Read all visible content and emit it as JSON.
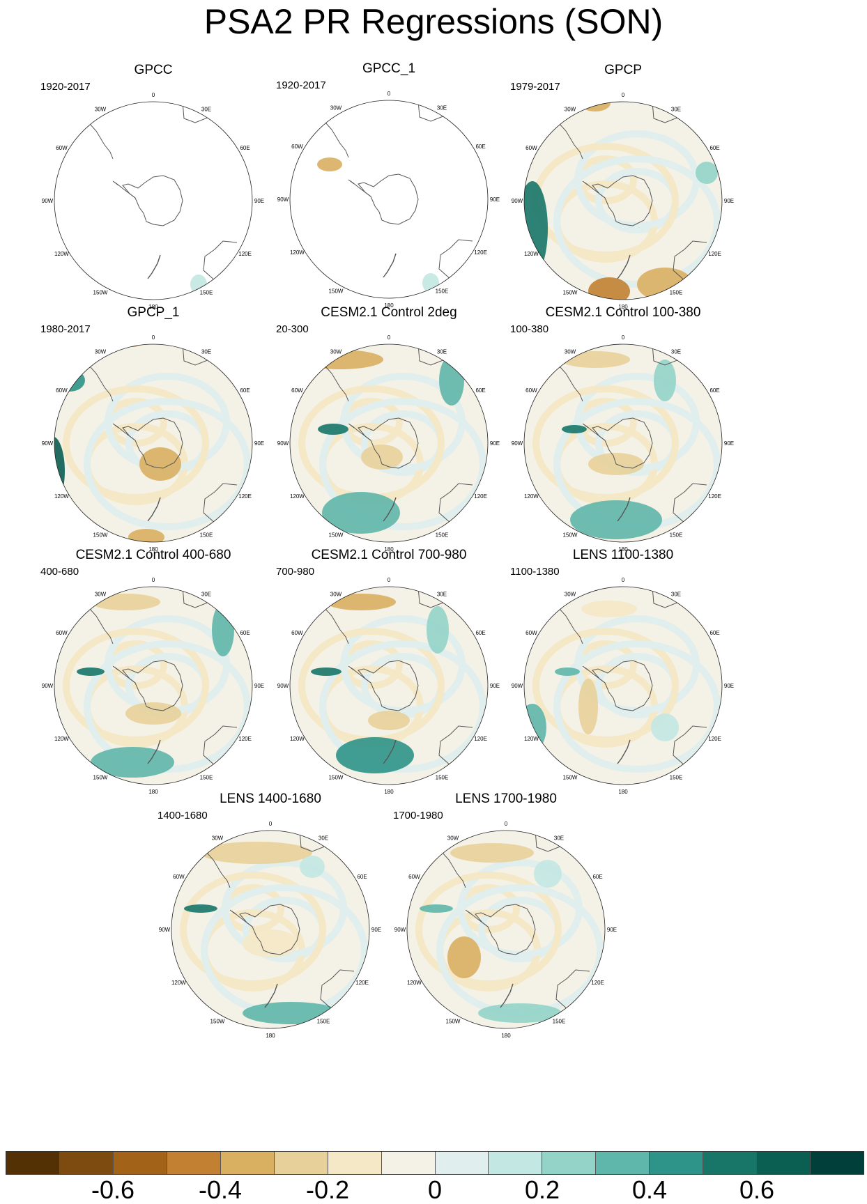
{
  "title": "PSA2 PR Regressions (SON)",
  "grid_labels": [
    "0",
    "30E",
    "60E",
    "90E",
    "120E",
    "150E",
    "180",
    "150W",
    "120W",
    "90W",
    "60W",
    "30W"
  ],
  "colorbar": {
    "colors": [
      "#543005",
      "#7d4a0f",
      "#a26218",
      "#c28132",
      "#d9af62",
      "#e8d09a",
      "#f5e8c6",
      "#f4f1e7",
      "#e0eeed",
      "#c3e7e2",
      "#93d3c8",
      "#5fb6aa",
      "#2e9388",
      "#177668",
      "#0b5e52",
      "#01403a"
    ],
    "tick_labels": [
      "-0.6",
      "-0.4",
      "-0.2",
      "0",
      "0.2",
      "0.4",
      "0.6"
    ],
    "tick_values": [
      -0.6,
      -0.4,
      -0.2,
      0,
      0.2,
      0.4,
      0.6
    ],
    "range": [
      -0.8,
      0.8
    ]
  },
  "panels": [
    {
      "title": "GPCC",
      "period": "1920-2017"
    },
    {
      "title": "GPCC_1",
      "period": "1920-2017"
    },
    {
      "title": "GPCP",
      "period": "1979-2017"
    },
    {
      "title": "GPCP_1",
      "period": "1980-2017"
    },
    {
      "title": "CESM2.1 Control 2deg",
      "period": "20-300"
    },
    {
      "title": "CESM2.1 Control 100-380",
      "period": "100-380"
    },
    {
      "title": "CESM2.1 Control 400-680",
      "period": "400-680"
    },
    {
      "title": "CESM2.1 Control 700-980",
      "period": "700-980"
    },
    {
      "title": "LENS 1100-1380",
      "period": "1100-1380"
    },
    {
      "title": "LENS 1400-1680",
      "period": "1400-1680"
    },
    {
      "title": "LENS 1700-1980",
      "period": "1700-1980"
    }
  ]
}
